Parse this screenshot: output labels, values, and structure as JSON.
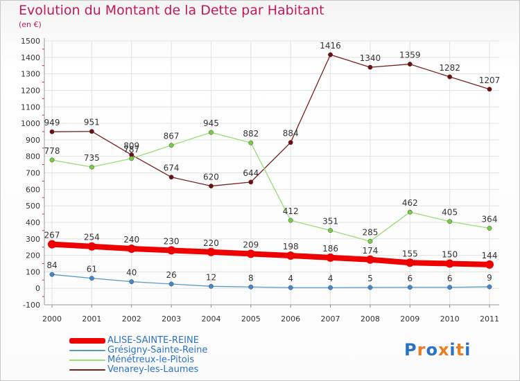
{
  "title": "Evolution du Montant de la Dette par Habitant",
  "unit": "(en €)",
  "logo": {
    "text": "Proxiti",
    "colors": [
      "#2a72c8",
      "#e67e22",
      "#2a72c8",
      "#e67e22",
      "#2a72c8",
      "#e67e22",
      "#2a72c8"
    ]
  },
  "chart_data": {
    "type": "line",
    "x": [
      "2000",
      "2001",
      "2002",
      "2003",
      "2004",
      "2005",
      "2006",
      "2007",
      "2008",
      "2009",
      "2010",
      "2011"
    ],
    "ylim": [
      -100,
      1500
    ],
    "yticks": [
      "-100",
      "0",
      "100",
      "200",
      "300",
      "400",
      "500",
      "600",
      "700",
      "800",
      "900",
      "1000",
      "1100",
      "1200",
      "1300",
      "1400",
      "1500"
    ],
    "grid": true,
    "legend_position": "bottom-left",
    "series": [
      {
        "name": "Venarey-les-Laumes",
        "color": "#7a1e1e",
        "point_color": "#6b0f0f",
        "width": 1.3,
        "values": [
          949,
          951,
          809,
          674,
          620,
          644,
          884,
          1416,
          1340,
          1359,
          1282,
          1207
        ]
      },
      {
        "name": "Ménétreux-le-Pitois",
        "color": "#99dd77",
        "point_color": "#77cc44",
        "width": 1.3,
        "values": [
          778,
          735,
          787,
          867,
          945,
          882,
          412,
          351,
          285,
          462,
          405,
          364
        ]
      },
      {
        "name": "Grésigny-Sainte-Reine",
        "color": "#5599cc",
        "point_color": "#4488cc",
        "width": 1.3,
        "values": [
          84,
          61,
          40,
          26,
          12,
          8,
          4,
          4,
          5,
          6,
          6,
          9
        ]
      },
      {
        "name": "ALISE-SAINTE-REINE",
        "color": "#ee0000",
        "point_color": "#ee0000",
        "width": 8,
        "values": [
          267,
          254,
          240,
          230,
          220,
          209,
          198,
          186,
          174,
          155,
          150,
          144
        ]
      }
    ]
  }
}
